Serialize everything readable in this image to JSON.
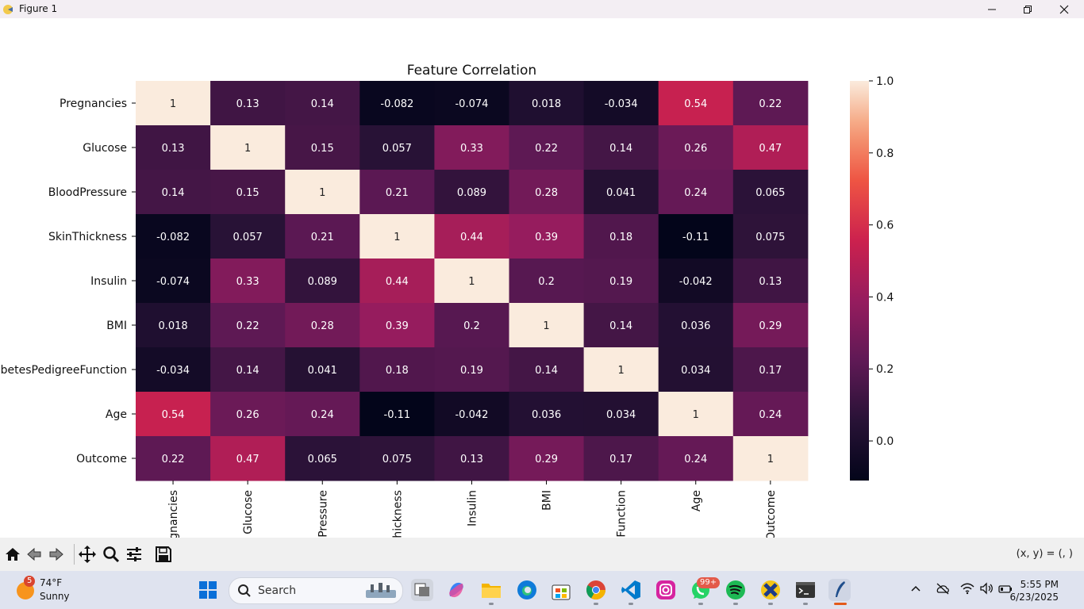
{
  "window": {
    "title": "Figure 1",
    "controls": [
      "minimize",
      "maximize",
      "close"
    ]
  },
  "toolbar": {
    "coords": "(x, y) = (, )",
    "buttons": [
      "home-icon",
      "back-icon",
      "forward-icon",
      "pan-icon",
      "zoom-icon",
      "configure-icon",
      "save-icon"
    ]
  },
  "chart_data": {
    "type": "heatmap",
    "title": "Feature Correlation",
    "rows": [
      "Pregnancies",
      "Glucose",
      "BloodPressure",
      "SkinThickness",
      "Insulin",
      "BMI",
      "DiabetesPedigreeFunction",
      "Age",
      "Outcome"
    ],
    "row_labels_visible": [
      "Pregnancies",
      "Glucose",
      "BloodPressure",
      "SkinThickness",
      "Insulin",
      "BMI",
      "abetesPedigreeFunction",
      "Age",
      "Outcome"
    ],
    "col_labels_visible": [
      "gnancies",
      "Glucose",
      "Pressure",
      "hickness",
      "Insulin",
      "BMI",
      "Function",
      "Age",
      "Outcome"
    ],
    "values": [
      [
        "1",
        "0.13",
        "0.14",
        "-0.082",
        "-0.074",
        "0.018",
        "-0.034",
        "0.54",
        "0.22"
      ],
      [
        "0.13",
        "1",
        "0.15",
        "0.057",
        "0.33",
        "0.22",
        "0.14",
        "0.26",
        "0.47"
      ],
      [
        "0.14",
        "0.15",
        "1",
        "0.21",
        "0.089",
        "0.28",
        "0.041",
        "0.24",
        "0.065"
      ],
      [
        "-0.082",
        "0.057",
        "0.21",
        "1",
        "0.44",
        "0.39",
        "0.18",
        "-0.11",
        "0.075"
      ],
      [
        "-0.074",
        "0.33",
        "0.089",
        "0.44",
        "1",
        "0.2",
        "0.19",
        "-0.042",
        "0.13"
      ],
      [
        "0.018",
        "0.22",
        "0.28",
        "0.39",
        "0.2",
        "1",
        "0.14",
        "0.036",
        "0.29"
      ],
      [
        "-0.034",
        "0.14",
        "0.041",
        "0.18",
        "0.19",
        "0.14",
        "1",
        "0.034",
        "0.17"
      ],
      [
        "0.54",
        "0.26",
        "0.24",
        "-0.11",
        "-0.042",
        "0.036",
        "0.034",
        "1",
        "0.24"
      ],
      [
        "0.22",
        "0.47",
        "0.065",
        "0.075",
        "0.13",
        "0.29",
        "0.17",
        "0.24",
        "1"
      ]
    ],
    "colormap": "rocket",
    "vmin": -0.11,
    "vmax": 1.0,
    "colorbar_ticks": [
      "1.0",
      "0.8",
      "0.6",
      "0.4",
      "0.2",
      "0.0"
    ],
    "colorbar_tick_values": [
      1.0,
      0.8,
      0.6,
      0.4,
      0.2,
      0.0
    ]
  },
  "taskbar": {
    "weather": {
      "temp": "74°F",
      "condition": "Sunny",
      "badge": "5"
    },
    "search_label": "Search",
    "whatsapp_badge": "99+",
    "time": "5:55 PM",
    "date": "6/23/2025",
    "colors": {
      "chrome": "#4285f4",
      "vscode": "#007acc",
      "instagram": "#d6249f",
      "whatsapp": "#25d366",
      "spotify": "#1db954",
      "explorer": "#f4b400",
      "edge": "#0f7bd9"
    }
  }
}
